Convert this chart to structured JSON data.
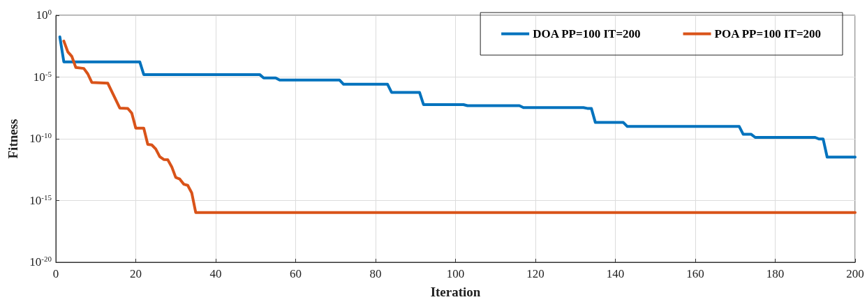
{
  "chart_data": {
    "type": "line",
    "xlabel": "Iteration",
    "ylabel": "Fitness",
    "log": "y",
    "grid": true,
    "legend": "top right",
    "marker": "none",
    "line_style": "solid",
    "xlim": [
      0,
      200
    ],
    "xticks": [
      0,
      20,
      40,
      60,
      80,
      100,
      120,
      140,
      160,
      180,
      200
    ],
    "ylim": [
      1e-20,
      1
    ],
    "yticks": [
      {
        "value": 1e-20,
        "label": "10$^{-20}$"
      },
      {
        "value": 1e-15,
        "label": "10$^{-15}$"
      },
      {
        "value": 1e-10,
        "label": "10$^{-10}$"
      },
      {
        "value": 1e-05,
        "label": "10$^{-5}$"
      },
      {
        "value": 1,
        "label": "10$^{0}$"
      }
    ],
    "series": [
      {
        "name": "DOA PP=100 IT=200",
        "color": "#0072bd",
        "x": [
          1,
          2,
          21,
          22,
          51,
          52,
          55,
          56,
          71,
          72,
          83,
          84,
          91,
          92,
          102,
          103,
          116,
          117,
          132,
          133,
          134,
          135,
          142,
          143,
          171,
          172,
          174,
          175,
          190,
          191,
          192,
          193,
          200
        ],
        "values": [
          0.018,
          0.00017,
          0.00017,
          1.6e-05,
          1.6e-05,
          8.5e-06,
          8.5e-06,
          5.7e-06,
          5.7e-06,
          2.6e-06,
          2.6e-06,
          5.8e-07,
          5.8e-07,
          5.9e-08,
          5.9e-08,
          4.8e-08,
          4.8e-08,
          3.4e-08,
          3.4e-08,
          2.9e-08,
          2.9e-08,
          2.1e-09,
          2.1e-09,
          1e-09,
          1e-09,
          2.3e-10,
          2.3e-10,
          1.3e-10,
          1.3e-10,
          9.6e-11,
          9.6e-11,
          3.3e-12,
          3.3e-12
        ]
      },
      {
        "name": "POA PP=100 IT=200",
        "color": "#d95319",
        "x": [
          2,
          3,
          4,
          5,
          7,
          8,
          9,
          13,
          16,
          18,
          19,
          20,
          22,
          23,
          24,
          25,
          26,
          27,
          28,
          29,
          30,
          31,
          32,
          33,
          34,
          35,
          200
        ],
        "values": [
          0.0083,
          0.0011,
          0.00047,
          5.9e-05,
          5e-05,
          1.8e-05,
          3.7e-06,
          3.2e-06,
          3.1e-08,
          2.9e-08,
          1.2e-08,
          7.3e-10,
          7.3e-10,
          3.5e-11,
          3.2e-11,
          1.5e-11,
          3.6e-12,
          2.1e-12,
          2e-12,
          5.4e-13,
          7.4e-14,
          5.5e-14,
          2.1e-14,
          1.7e-14,
          4.2e-15,
          1.07e-16,
          1.07e-16
        ]
      }
    ]
  }
}
